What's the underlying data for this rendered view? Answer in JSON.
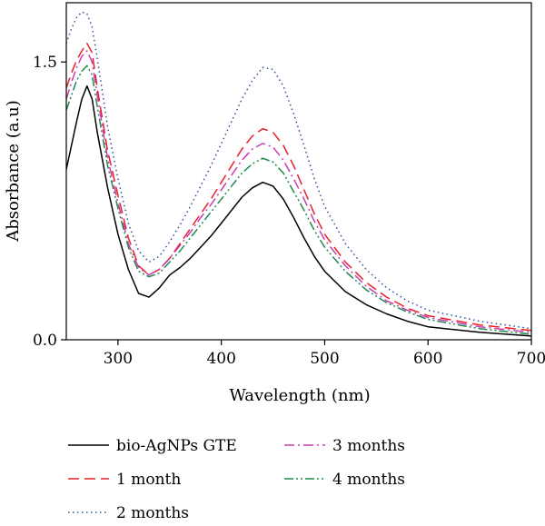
{
  "chart_data": {
    "type": "line",
    "title": "",
    "xlabel": "Wavelength (nm)",
    "ylabel": "Absorbance (a.u)",
    "xlim": [
      250,
      700
    ],
    "ylim": [
      0,
      1.82
    ],
    "x_ticks": [
      300,
      400,
      500,
      600,
      700
    ],
    "y_ticks": [
      0.0,
      1.5
    ],
    "y_tick_labels": [
      "0.0",
      "1.5"
    ],
    "grid": false,
    "legend_position": "bottom",
    "series": [
      {
        "name": "bio-AgNPs GTE",
        "color": "#000000",
        "dash": "solid",
        "x": [
          250,
          255,
          260,
          265,
          270,
          275,
          280,
          290,
          300,
          310,
          320,
          330,
          340,
          350,
          360,
          370,
          380,
          390,
          400,
          410,
          420,
          430,
          440,
          450,
          460,
          470,
          480,
          490,
          500,
          520,
          540,
          560,
          580,
          600,
          650,
          700
        ],
        "y": [
          0.92,
          1.05,
          1.18,
          1.3,
          1.37,
          1.3,
          1.12,
          0.82,
          0.57,
          0.38,
          0.25,
          0.23,
          0.28,
          0.35,
          0.39,
          0.44,
          0.5,
          0.56,
          0.63,
          0.7,
          0.77,
          0.82,
          0.85,
          0.83,
          0.76,
          0.66,
          0.55,
          0.45,
          0.37,
          0.26,
          0.19,
          0.14,
          0.1,
          0.07,
          0.04,
          0.02
        ]
      },
      {
        "name": "1 month",
        "color": "#e8202a",
        "dash": "long-dash",
        "x": [
          250,
          255,
          260,
          265,
          270,
          275,
          280,
          290,
          300,
          310,
          320,
          330,
          340,
          350,
          360,
          370,
          380,
          390,
          400,
          410,
          420,
          430,
          440,
          450,
          460,
          470,
          480,
          490,
          500,
          520,
          540,
          560,
          580,
          600,
          650,
          700
        ],
        "y": [
          1.36,
          1.44,
          1.51,
          1.56,
          1.6,
          1.55,
          1.36,
          1.02,
          0.78,
          0.55,
          0.4,
          0.35,
          0.38,
          0.44,
          0.52,
          0.6,
          0.68,
          0.76,
          0.85,
          0.94,
          1.03,
          1.1,
          1.14,
          1.12,
          1.05,
          0.94,
          0.81,
          0.68,
          0.57,
          0.42,
          0.31,
          0.23,
          0.17,
          0.13,
          0.08,
          0.05
        ]
      },
      {
        "name": "2 months",
        "color": "#2d4fa0",
        "dash": "dotted",
        "x": [
          250,
          255,
          260,
          265,
          270,
          275,
          280,
          290,
          300,
          310,
          320,
          330,
          340,
          350,
          360,
          370,
          380,
          390,
          400,
          410,
          420,
          430,
          440,
          450,
          460,
          470,
          480,
          490,
          500,
          520,
          540,
          560,
          580,
          600,
          650,
          700
        ],
        "y": [
          1.6,
          1.68,
          1.74,
          1.77,
          1.76,
          1.69,
          1.52,
          1.15,
          0.87,
          0.63,
          0.48,
          0.42,
          0.45,
          0.53,
          0.62,
          0.72,
          0.83,
          0.94,
          1.06,
          1.18,
          1.3,
          1.4,
          1.47,
          1.46,
          1.37,
          1.22,
          1.05,
          0.87,
          0.72,
          0.52,
          0.38,
          0.28,
          0.21,
          0.16,
          0.1,
          0.06
        ]
      },
      {
        "name": "3 months",
        "color": "#c83cb4",
        "dash": "dash-dot",
        "x": [
          250,
          255,
          260,
          265,
          270,
          275,
          280,
          290,
          300,
          310,
          320,
          330,
          340,
          350,
          360,
          370,
          380,
          390,
          400,
          410,
          420,
          430,
          440,
          450,
          460,
          470,
          480,
          490,
          500,
          520,
          540,
          560,
          580,
          600,
          650,
          700
        ],
        "y": [
          1.3,
          1.39,
          1.47,
          1.53,
          1.56,
          1.5,
          1.32,
          0.98,
          0.74,
          0.52,
          0.39,
          0.35,
          0.38,
          0.44,
          0.51,
          0.58,
          0.66,
          0.73,
          0.81,
          0.89,
          0.97,
          1.03,
          1.06,
          1.04,
          0.97,
          0.87,
          0.76,
          0.64,
          0.54,
          0.4,
          0.29,
          0.21,
          0.16,
          0.12,
          0.07,
          0.04
        ]
      },
      {
        "name": "4 months",
        "color": "#1f8a4c",
        "dash": "dash-dot-dot",
        "x": [
          250,
          255,
          260,
          265,
          270,
          275,
          280,
          290,
          300,
          310,
          320,
          330,
          340,
          350,
          360,
          370,
          380,
          390,
          400,
          410,
          420,
          430,
          440,
          450,
          460,
          470,
          480,
          490,
          500,
          520,
          540,
          560,
          580,
          600,
          650,
          700
        ],
        "y": [
          1.24,
          1.32,
          1.4,
          1.45,
          1.48,
          1.43,
          1.26,
          0.94,
          0.71,
          0.5,
          0.37,
          0.34,
          0.36,
          0.42,
          0.48,
          0.55,
          0.62,
          0.69,
          0.76,
          0.83,
          0.9,
          0.95,
          0.98,
          0.96,
          0.9,
          0.8,
          0.7,
          0.59,
          0.5,
          0.37,
          0.27,
          0.2,
          0.15,
          0.11,
          0.06,
          0.03
        ]
      }
    ]
  }
}
